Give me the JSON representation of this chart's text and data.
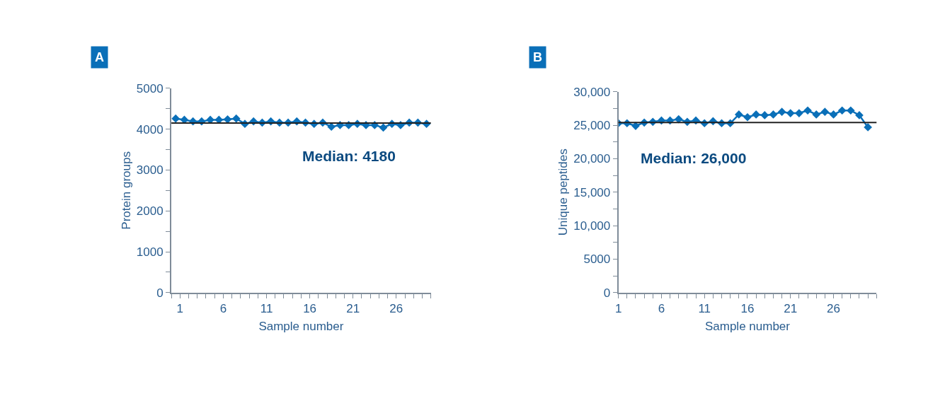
{
  "chart_data": [
    {
      "type": "line",
      "title": "A",
      "xlabel": "Sample number",
      "ylabel": "Protein groups",
      "marker": "diamond",
      "x": [
        0.5,
        1.5,
        2.5,
        3.5,
        4.5,
        5.5,
        6.5,
        7.5,
        8.5,
        9.5,
        10.5,
        11.5,
        12.5,
        13.5,
        14.5,
        15.5,
        16.5,
        17.5,
        18.5,
        19.5,
        20.5,
        21.5,
        22.5,
        23.5,
        24.5,
        25.5,
        26.5,
        27.5,
        28.5,
        29.5
      ],
      "series": [
        {
          "color": "#0a6fb8",
          "values": [
            4260,
            4230,
            4190,
            4190,
            4230,
            4230,
            4240,
            4260,
            4130,
            4190,
            4160,
            4190,
            4160,
            4160,
            4190,
            4160,
            4130,
            4160,
            4060,
            4100,
            4100,
            4130,
            4100,
            4100,
            4040,
            4130,
            4100,
            4160,
            4160,
            4130
          ]
        }
      ],
      "xlim": [
        0,
        30
      ],
      "xticks": [
        {
          "value": 0,
          "label": null
        },
        {
          "value": 1,
          "label": "1"
        },
        {
          "value": 2,
          "label": null
        },
        {
          "value": 3,
          "label": null
        },
        {
          "value": 4,
          "label": null
        },
        {
          "value": 5,
          "label": null
        },
        {
          "value": 6,
          "label": "6"
        },
        {
          "value": 7,
          "label": null
        },
        {
          "value": 8,
          "label": null
        },
        {
          "value": 9,
          "label": null
        },
        {
          "value": 10,
          "label": null
        },
        {
          "value": 11,
          "label": "11"
        },
        {
          "value": 12,
          "label": null
        },
        {
          "value": 13,
          "label": null
        },
        {
          "value": 14,
          "label": null
        },
        {
          "value": 15,
          "label": null
        },
        {
          "value": 16,
          "label": "16"
        },
        {
          "value": 17,
          "label": null
        },
        {
          "value": 18,
          "label": null
        },
        {
          "value": 19,
          "label": null
        },
        {
          "value": 20,
          "label": null
        },
        {
          "value": 21,
          "label": "21"
        },
        {
          "value": 22,
          "label": null
        },
        {
          "value": 23,
          "label": null
        },
        {
          "value": 24,
          "label": null
        },
        {
          "value": 25,
          "label": null
        },
        {
          "value": 26,
          "label": "26"
        },
        {
          "value": 27,
          "label": null
        },
        {
          "value": 28,
          "label": null
        },
        {
          "value": 29,
          "label": null
        },
        {
          "value": 30,
          "label": null
        }
      ],
      "ylim": [
        0,
        5000
      ],
      "yticks": [
        0,
        {
          "value": 500,
          "label": null
        },
        1000,
        {
          "value": 1500,
          "label": null
        },
        2000,
        {
          "value": 2500,
          "label": null
        },
        3000,
        {
          "value": 3500,
          "label": null
        },
        4000,
        {
          "value": 4500,
          "label": null
        },
        5000
      ],
      "ref_lines": [
        {
          "axis": "y",
          "value": 4150,
          "color": "#222222"
        }
      ],
      "annotations": [
        "Median: 4180"
      ]
    },
    {
      "type": "line",
      "title": "B",
      "xlabel": "Sample number",
      "ylabel": "Unique peptides",
      "marker": "diamond",
      "x": [
        1,
        2,
        3,
        4,
        5,
        6,
        7,
        8,
        9,
        10,
        11,
        12,
        13,
        14,
        15,
        16,
        17,
        18,
        19,
        20,
        21,
        22,
        23,
        24,
        25,
        26,
        27,
        28,
        29,
        30
      ],
      "series": [
        {
          "color": "#0a6fb8",
          "values": [
            25300,
            25300,
            24900,
            25400,
            25500,
            25700,
            25700,
            25900,
            25500,
            25700,
            25300,
            25600,
            25300,
            25300,
            26600,
            26200,
            26600,
            26500,
            26600,
            27000,
            26800,
            26800,
            27200,
            26600,
            27000,
            26600,
            27200,
            27200,
            26500,
            24700
          ]
        }
      ],
      "xlim": [
        1,
        31
      ],
      "xticks": [
        {
          "value": 1,
          "label": "1"
        },
        {
          "value": 2,
          "label": null
        },
        {
          "value": 3,
          "label": null
        },
        {
          "value": 4,
          "label": null
        },
        {
          "value": 5,
          "label": null
        },
        {
          "value": 6,
          "label": "6"
        },
        {
          "value": 7,
          "label": null
        },
        {
          "value": 8,
          "label": null
        },
        {
          "value": 9,
          "label": null
        },
        {
          "value": 10,
          "label": null
        },
        {
          "value": 11,
          "label": "11"
        },
        {
          "value": 12,
          "label": null
        },
        {
          "value": 13,
          "label": null
        },
        {
          "value": 14,
          "label": null
        },
        {
          "value": 15,
          "label": null
        },
        {
          "value": 16,
          "label": "16"
        },
        {
          "value": 17,
          "label": null
        },
        {
          "value": 18,
          "label": null
        },
        {
          "value": 19,
          "label": null
        },
        {
          "value": 20,
          "label": null
        },
        {
          "value": 21,
          "label": "21"
        },
        {
          "value": 22,
          "label": null
        },
        {
          "value": 23,
          "label": null
        },
        {
          "value": 24,
          "label": null
        },
        {
          "value": 25,
          "label": null
        },
        {
          "value": 26,
          "label": "26"
        },
        {
          "value": 27,
          "label": null
        },
        {
          "value": 28,
          "label": null
        },
        {
          "value": 29,
          "label": null
        },
        {
          "value": 30,
          "label": null
        },
        {
          "value": 31,
          "label": null
        }
      ],
      "ylim": [
        0,
        30000
      ],
      "yticks": [
        0,
        {
          "value": 2500,
          "label": null
        },
        {
          "value": 5000,
          "label": "5000"
        },
        {
          "value": 7500,
          "label": null
        },
        {
          "value": 10000,
          "label": "10,000"
        },
        {
          "value": 12500,
          "label": null
        },
        {
          "value": 15000,
          "label": "15,000"
        },
        {
          "value": 17500,
          "label": null
        },
        {
          "value": 20000,
          "label": "20,000"
        },
        {
          "value": 22500,
          "label": null
        },
        {
          "value": 25000,
          "label": "25,000"
        },
        {
          "value": 27500,
          "label": null
        },
        {
          "value": 30000,
          "label": "30,000"
        }
      ],
      "ref_lines": [
        {
          "axis": "y",
          "value": 25400,
          "color": "#222222"
        }
      ],
      "annotations": [
        "Median: 26,000"
      ]
    }
  ]
}
